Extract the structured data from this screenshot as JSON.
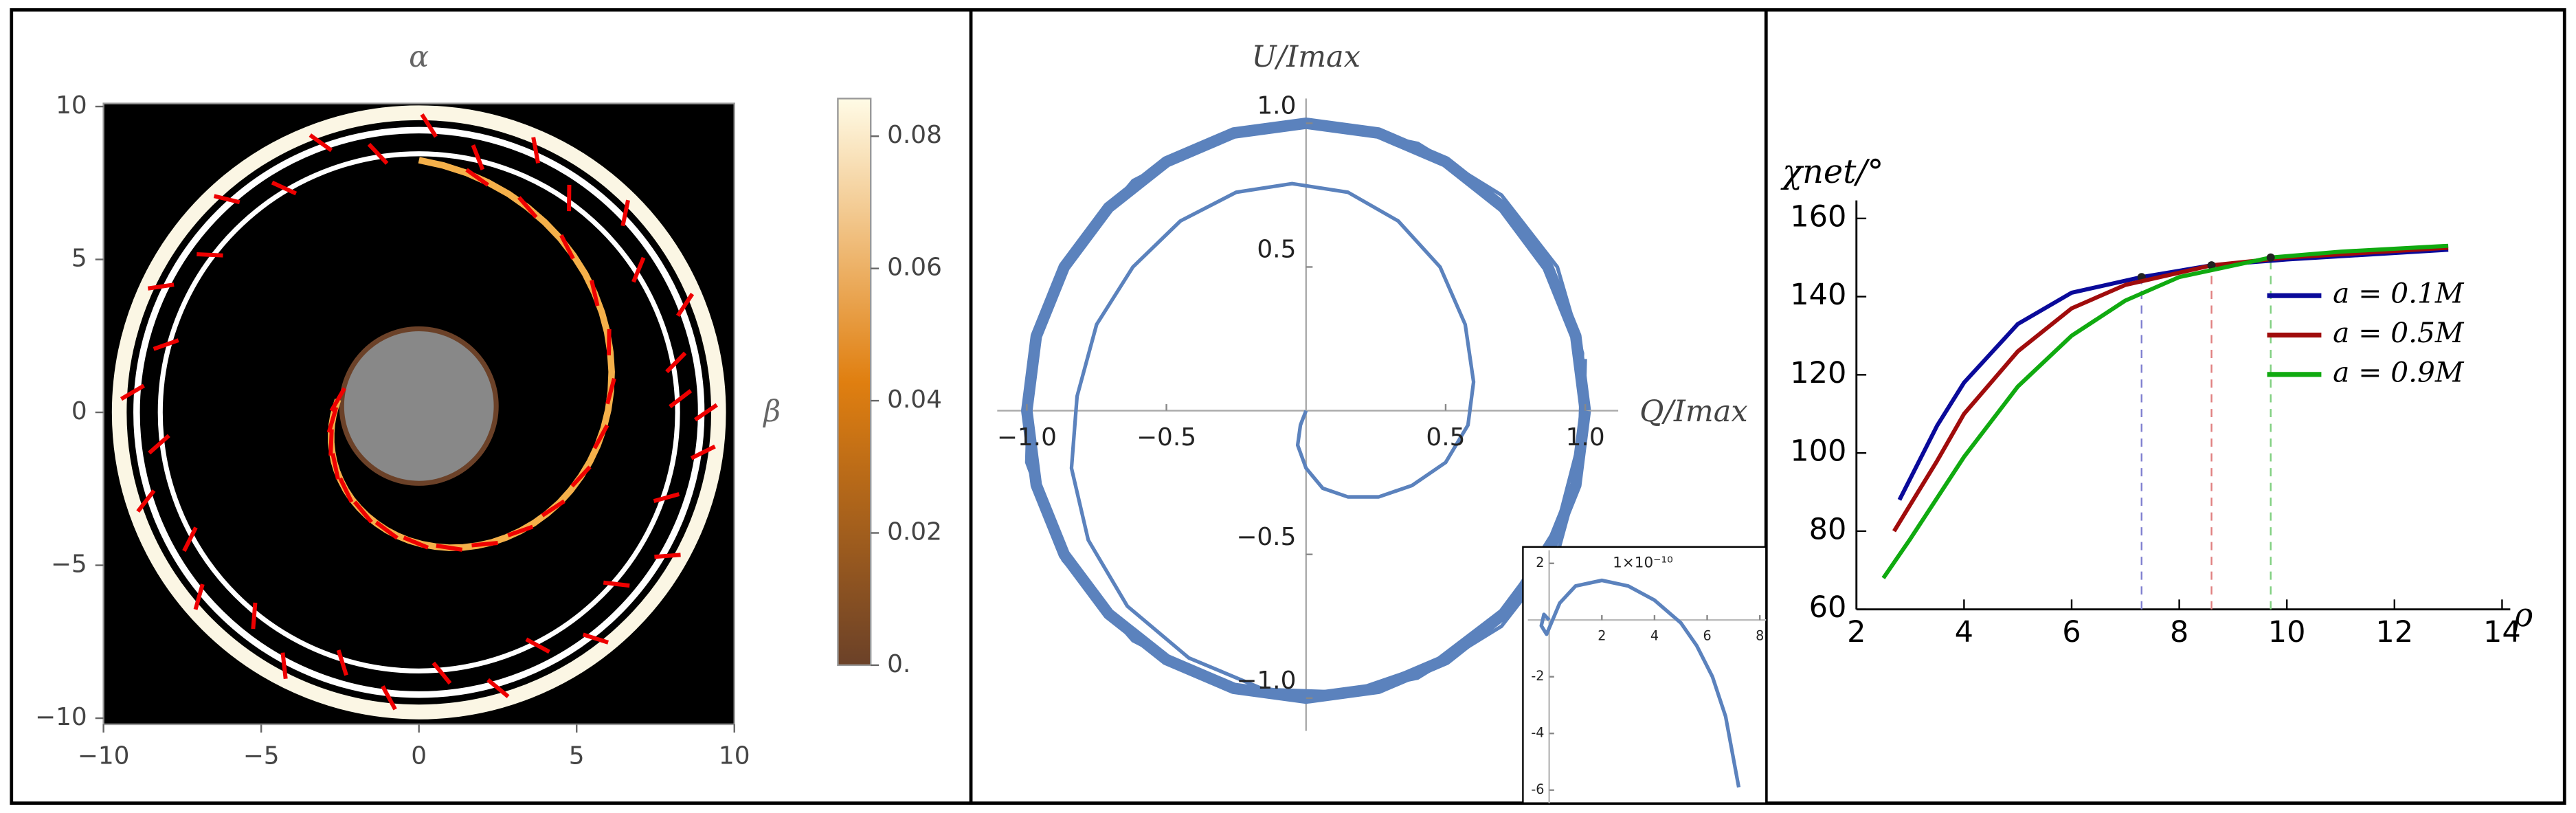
{
  "chart_data": [
    {
      "type": "image_map",
      "title": "α",
      "ylabel": "β",
      "xlim": [
        -10,
        10
      ],
      "ylim": [
        -10.2,
        10.1
      ],
      "xticks": [
        {
          "value": -10,
          "label": "−10"
        },
        {
          "value": -5,
          "label": "−5"
        },
        0,
        5,
        10
      ],
      "yticks": [
        {
          "value": -10,
          "label": "−10"
        },
        {
          "value": -5,
          "label": "−5"
        },
        0,
        5,
        10
      ],
      "colorbar": {
        "lim": [
          0,
          0.0857
        ],
        "ticks": [
          {
            "value": 0,
            "label": "0."
          },
          0.02,
          0.04,
          0.06,
          0.08
        ],
        "colors": [
          "#6b4128",
          "#e07f10",
          "#fffbe6"
        ]
      }
    },
    {
      "type": "line",
      "xlabel": "Q/Imax",
      "ylabel": "U/Imax",
      "xlim": [
        -1.106,
        1.118
      ],
      "ylim": [
        -1.114,
        1.086
      ],
      "xticks": [
        {
          "value": -1,
          "label": "−1.0"
        },
        {
          "value": -0.5,
          "label": "−0.5"
        },
        0.5,
        {
          "value": 1,
          "label": "1.0"
        }
      ],
      "yticks": [
        {
          "value": -1,
          "label": "−1.0"
        },
        {
          "value": -0.5,
          "label": "−0.5"
        },
        0.5,
        {
          "value": 1,
          "label": "1.0"
        }
      ],
      "series": [
        {
          "color": "#5b82bd",
          "width": 2.2,
          "x": [
            0,
            -0.02,
            -0.03,
            0,
            0.06,
            0.15,
            0.26,
            0.38,
            0.5,
            0.58,
            0.6,
            0.57,
            0.48,
            0.33,
            0.15,
            -0.05,
            -0.25,
            -0.45,
            -0.62,
            -0.75,
            -0.82,
            -0.84,
            -0.78,
            -0.64,
            -0.42,
            -0.15,
            0.15,
            0.45,
            0.72,
            0.9,
            0.98,
            0.99,
            0.9,
            0.7,
            0.4,
            0.05,
            -0.3,
            -0.62,
            -0.86,
            -0.99,
            -1.0,
            -0.87,
            -0.62,
            -0.3,
            0.05,
            0.4,
            0.7,
            0.9,
            0.99,
            1.0
          ],
          "y": [
            0,
            -0.05,
            -0.12,
            -0.2,
            -0.27,
            -0.3,
            -0.3,
            -0.26,
            -0.18,
            -0.05,
            0.1,
            0.3,
            0.5,
            0.66,
            0.76,
            0.79,
            0.76,
            0.66,
            0.5,
            0.3,
            0.05,
            -0.2,
            -0.45,
            -0.68,
            -0.86,
            -0.97,
            -0.98,
            -0.88,
            -0.68,
            -0.4,
            -0.1,
            0.2,
            0.5,
            0.75,
            0.93,
            1.0,
            0.96,
            0.8,
            0.52,
            0.18,
            -0.18,
            -0.52,
            -0.8,
            -0.96,
            -1.0,
            -0.93,
            -0.75,
            -0.5,
            -0.18,
            0.18
          ]
        },
        {
          "color": "#5b82bd",
          "width": 7,
          "x": [
            1,
            0.966,
            0.866,
            0.707,
            0.5,
            0.259,
            0,
            -0.259,
            -0.5,
            -0.707,
            -0.866,
            -0.966,
            -1,
            -0.966,
            -0.866,
            -0.707,
            -0.5,
            -0.259,
            0,
            0.259,
            0.5,
            0.707,
            0.866,
            0.966,
            1
          ],
          "y": [
            0,
            0.259,
            0.5,
            0.707,
            0.866,
            0.966,
            1,
            0.966,
            0.866,
            0.707,
            0.5,
            0.259,
            0,
            -0.259,
            -0.5,
            -0.707,
            -0.866,
            -0.966,
            -1,
            -0.966,
            -0.866,
            -0.707,
            -0.5,
            -0.259,
            0
          ]
        }
      ],
      "inset": {
        "type": "line",
        "title": "1×10⁻¹⁰",
        "xlim": [
          0,
          8.3
        ],
        "ylim": [
          -6.46,
          2.58
        ],
        "xticks": [
          2,
          4,
          6,
          8
        ],
        "yticks": [
          2,
          -2,
          -4,
          -6
        ],
        "series": [
          {
            "color": "#5b82bd",
            "width": 2.2,
            "x": [
              0,
              -0.2,
              -0.3,
              -0.1,
              0.4,
              1,
              2,
              3,
              4,
              5,
              5.6,
              6.2,
              6.7,
              7.2
            ],
            "y": [
              0,
              0.2,
              -0.2,
              -0.5,
              0.6,
              1.2,
              1.4,
              1.2,
              0.7,
              -0.1,
              -0.9,
              -2,
              -3.4,
              -5.9
            ]
          }
        ]
      }
    },
    {
      "type": "line",
      "xlabel": "ρ",
      "ylabel": "χnet/°",
      "xlim": [
        2,
        14
      ],
      "ylim": [
        60,
        160
      ],
      "xticks": [
        2,
        4,
        6,
        8,
        10,
        12,
        14
      ],
      "yticks": [
        60,
        80,
        100,
        120,
        140,
        160
      ],
      "series": [
        {
          "name": "a = 0.1M",
          "color": "#0a0a9a",
          "x": [
            2.8,
            3.5,
            4,
            5,
            6,
            7.3,
            8.6,
            10,
            13
          ],
          "y": [
            88,
            107,
            118,
            133,
            141,
            145,
            148,
            149.5,
            152
          ],
          "mark_x": 7.3,
          "mark_y": 145,
          "mark_color": "#8080d0"
        },
        {
          "name": "a = 0.5M",
          "color": "#a00c0c",
          "x": [
            2.7,
            3.5,
            4,
            5,
            6,
            7,
            8.6,
            10,
            13
          ],
          "y": [
            80,
            98,
            110,
            126,
            137,
            143,
            148,
            150,
            152.5
          ],
          "mark_x": 8.6,
          "mark_y": 148,
          "mark_color": "#e08080"
        },
        {
          "name": "a = 0.9M",
          "color": "#10aa10",
          "x": [
            2.5,
            3,
            4,
            5,
            6,
            7,
            8,
            9.7,
            11,
            13
          ],
          "y": [
            68,
            78,
            99,
            117,
            130,
            139,
            145,
            150,
            151.5,
            153
          ],
          "mark_x": 9.7,
          "mark_y": 150,
          "mark_color": "#80d080"
        }
      ]
    }
  ]
}
